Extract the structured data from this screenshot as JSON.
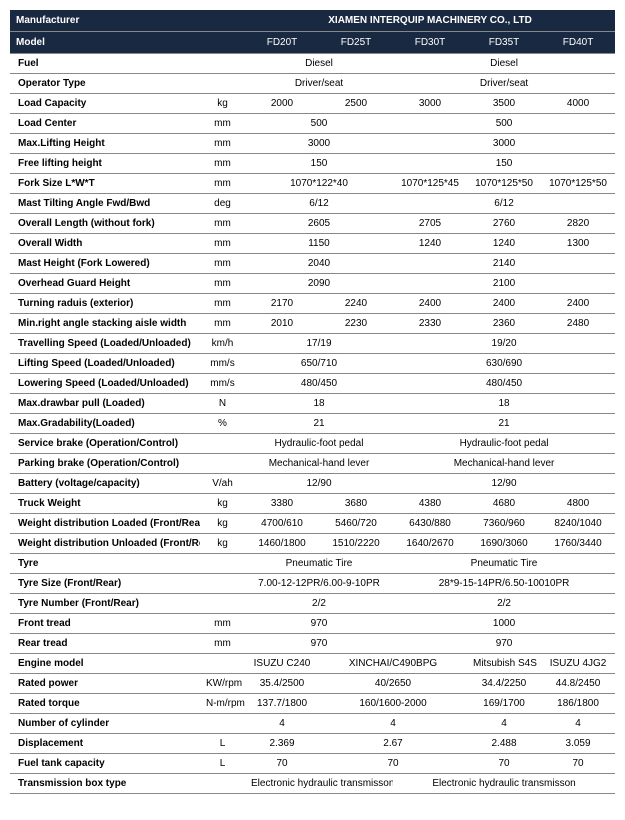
{
  "header": {
    "manufacturer_label": "Manufacturer",
    "manufacturer_value": "XIAMEN INTERQUIP MACHINERY CO., LTD",
    "model_label": "Model",
    "models": [
      "FD20T",
      "FD25T",
      "FD30T",
      "FD35T",
      "FD40T"
    ]
  },
  "rows": [
    {
      "label": "Fuel",
      "unit": "",
      "cells": [
        {
          "span": 2,
          "v": "Diesel"
        },
        {
          "span": 3,
          "v": "Diesel"
        }
      ]
    },
    {
      "label": "Operator Type",
      "unit": "",
      "cells": [
        {
          "span": 2,
          "v": "Driver/seat"
        },
        {
          "span": 3,
          "v": "Driver/seat"
        }
      ]
    },
    {
      "label": "Load Capacity",
      "unit": "kg",
      "cells": [
        {
          "span": 1,
          "v": "2000"
        },
        {
          "span": 1,
          "v": "2500"
        },
        {
          "span": 1,
          "v": "3000"
        },
        {
          "span": 1,
          "v": "3500"
        },
        {
          "span": 1,
          "v": "4000"
        }
      ]
    },
    {
      "label": "Load Center",
      "unit": "mm",
      "cells": [
        {
          "span": 2,
          "v": "500"
        },
        {
          "span": 3,
          "v": "500"
        }
      ]
    },
    {
      "label": "Max.Lifting Height",
      "unit": "mm",
      "cells": [
        {
          "span": 2,
          "v": "3000"
        },
        {
          "span": 3,
          "v": "3000"
        }
      ]
    },
    {
      "label": "Free lifting height",
      "unit": "mm",
      "cells": [
        {
          "span": 2,
          "v": "150"
        },
        {
          "span": 3,
          "v": "150"
        }
      ]
    },
    {
      "label": "Fork Size  L*W*T",
      "unit": "mm",
      "cells": [
        {
          "span": 2,
          "v": "1070*122*40"
        },
        {
          "span": 1,
          "v": "1070*125*45"
        },
        {
          "span": 1,
          "v": "1070*125*50"
        },
        {
          "span": 1,
          "v": "1070*125*50"
        }
      ]
    },
    {
      "label": "Mast Tilting Angle  Fwd/Bwd",
      "unit": "deg",
      "cells": [
        {
          "span": 2,
          "v": "6/12"
        },
        {
          "span": 3,
          "v": "6/12"
        }
      ]
    },
    {
      "label": "Overall Length (without fork)",
      "unit": "mm",
      "cells": [
        {
          "span": 2,
          "v": "2605"
        },
        {
          "span": 1,
          "v": "2705"
        },
        {
          "span": 1,
          "v": "2760"
        },
        {
          "span": 1,
          "v": "2820"
        }
      ]
    },
    {
      "label": "Overall Width",
      "unit": "mm",
      "cells": [
        {
          "span": 2,
          "v": "1150"
        },
        {
          "span": 1,
          "v": "1240"
        },
        {
          "span": 1,
          "v": "1240"
        },
        {
          "span": 1,
          "v": "1300"
        }
      ]
    },
    {
      "label": "Mast Height (Fork Lowered)",
      "unit": "mm",
      "cells": [
        {
          "span": 2,
          "v": "2040"
        },
        {
          "span": 3,
          "v": "2140"
        }
      ]
    },
    {
      "label": "Overhead Guard Height",
      "unit": "mm",
      "cells": [
        {
          "span": 2,
          "v": "2090"
        },
        {
          "span": 3,
          "v": "2100"
        }
      ]
    },
    {
      "label": "Turning raduis (exterior)",
      "unit": "mm",
      "cells": [
        {
          "span": 1,
          "v": "2170"
        },
        {
          "span": 1,
          "v": "2240"
        },
        {
          "span": 1,
          "v": "2400"
        },
        {
          "span": 1,
          "v": "2400"
        },
        {
          "span": 1,
          "v": "2400"
        }
      ]
    },
    {
      "label": "Min.right angle stacking aisle width",
      "unit": "mm",
      "cells": [
        {
          "span": 1,
          "v": "2010"
        },
        {
          "span": 1,
          "v": "2230"
        },
        {
          "span": 1,
          "v": "2330"
        },
        {
          "span": 1,
          "v": "2360"
        },
        {
          "span": 1,
          "v": "2480"
        }
      ]
    },
    {
      "label": "Travelling Speed (Loaded/Unloaded)",
      "unit": "km/h",
      "cells": [
        {
          "span": 2,
          "v": "17/19"
        },
        {
          "span": 3,
          "v": "19/20"
        }
      ]
    },
    {
      "label": "Lifting Speed (Loaded/Unloaded)",
      "unit": "mm/s",
      "cells": [
        {
          "span": 2,
          "v": "650/710"
        },
        {
          "span": 3,
          "v": "630/690"
        }
      ]
    },
    {
      "label": "Lowering Speed (Loaded/Unloaded)",
      "unit": "mm/s",
      "cells": [
        {
          "span": 2,
          "v": "480/450"
        },
        {
          "span": 3,
          "v": "480/450"
        }
      ]
    },
    {
      "label": "Max.drawbar pull (Loaded)",
      "unit": "N",
      "cells": [
        {
          "span": 2,
          "v": "18"
        },
        {
          "span": 3,
          "v": "18"
        }
      ]
    },
    {
      "label": "Max.Gradability(Loaded)",
      "unit": "%",
      "cells": [
        {
          "span": 2,
          "v": "21"
        },
        {
          "span": 3,
          "v": "21"
        }
      ]
    },
    {
      "label": "Service brake (Operation/Control)",
      "unit": "",
      "cells": [
        {
          "span": 2,
          "v": "Hydraulic-foot pedal"
        },
        {
          "span": 3,
          "v": "Hydraulic-foot pedal"
        }
      ]
    },
    {
      "label": "Parking brake (Operation/Control)",
      "unit": "",
      "cells": [
        {
          "span": 2,
          "v": "Mechanical-hand lever"
        },
        {
          "span": 3,
          "v": "Mechanical-hand lever"
        }
      ]
    },
    {
      "label": "Battery (voltage/capacity)",
      "unit": "V/ah",
      "cells": [
        {
          "span": 2,
          "v": "12/90"
        },
        {
          "span": 3,
          "v": "12/90"
        }
      ]
    },
    {
      "label": "Truck Weight",
      "unit": "kg",
      "cells": [
        {
          "span": 1,
          "v": "3380"
        },
        {
          "span": 1,
          "v": "3680"
        },
        {
          "span": 1,
          "v": "4380"
        },
        {
          "span": 1,
          "v": "4680"
        },
        {
          "span": 1,
          "v": "4800"
        }
      ]
    },
    {
      "label": "Weight distribution Loaded (Front/Rear)",
      "unit": "kg",
      "cells": [
        {
          "span": 1,
          "v": "4700/610"
        },
        {
          "span": 1,
          "v": "5460/720"
        },
        {
          "span": 1,
          "v": "6430/880"
        },
        {
          "span": 1,
          "v": "7360/960"
        },
        {
          "span": 1,
          "v": "8240/1040"
        }
      ]
    },
    {
      "label": "Weight distribution Unloaded (Front/Rear)",
      "unit": "kg",
      "cells": [
        {
          "span": 1,
          "v": "1460/1800"
        },
        {
          "span": 1,
          "v": "1510/2220"
        },
        {
          "span": 1,
          "v": "1640/2670"
        },
        {
          "span": 1,
          "v": "1690/3060"
        },
        {
          "span": 1,
          "v": "1760/3440"
        }
      ]
    },
    {
      "label": "Tyre",
      "unit": "",
      "cells": [
        {
          "span": 2,
          "v": "Pneumatic Tire"
        },
        {
          "span": 3,
          "v": "Pneumatic Tire"
        }
      ]
    },
    {
      "label": "Tyre Size  (Front/Rear)",
      "unit": "",
      "cells": [
        {
          "span": 2,
          "v": "7.00-12-12PR/6.00-9-10PR"
        },
        {
          "span": 3,
          "v": "28*9-15-14PR/6.50-10010PR"
        }
      ]
    },
    {
      "label": "Tyre Number  (Front/Rear)",
      "unit": "",
      "cells": [
        {
          "span": 2,
          "v": "2/2"
        },
        {
          "span": 3,
          "v": "2/2"
        }
      ]
    },
    {
      "label": "Front tread",
      "unit": "mm",
      "cells": [
        {
          "span": 2,
          "v": "970"
        },
        {
          "span": 3,
          "v": "1000"
        }
      ]
    },
    {
      "label": "Rear tread",
      "unit": "mm",
      "cells": [
        {
          "span": 2,
          "v": "970"
        },
        {
          "span": 3,
          "v": "970"
        }
      ]
    },
    {
      "label": "Engine model",
      "unit": "",
      "cells": [
        {
          "span": 1,
          "v": "ISUZU C240"
        },
        {
          "span": 2,
          "v": "XINCHAI/C490BPG"
        },
        {
          "span": 1,
          "v": "Mitsubish S4S"
        },
        {
          "span": 1,
          "v": "ISUZU 4JG2"
        }
      ]
    },
    {
      "label": "Rated power",
      "unit": "KW/rpm",
      "cells": [
        {
          "span": 1,
          "v": "35.4/2500"
        },
        {
          "span": 2,
          "v": "40/2650"
        },
        {
          "span": 1,
          "v": "34.4/2250"
        },
        {
          "span": 1,
          "v": "44.8/2450"
        }
      ]
    },
    {
      "label": "Rated torque",
      "unit": "N-m/rpm",
      "cells": [
        {
          "span": 1,
          "v": "137.7/1800"
        },
        {
          "span": 2,
          "v": "160/1600-2000"
        },
        {
          "span": 1,
          "v": "169/1700"
        },
        {
          "span": 1,
          "v": "186/1800"
        }
      ]
    },
    {
      "label": "Number of cylinder",
      "unit": "",
      "cells": [
        {
          "span": 1,
          "v": "4"
        },
        {
          "span": 2,
          "v": "4"
        },
        {
          "span": 1,
          "v": "4"
        },
        {
          "span": 1,
          "v": "4"
        }
      ]
    },
    {
      "label": "Displacement",
      "unit": "L",
      "cells": [
        {
          "span": 1,
          "v": "2.369"
        },
        {
          "span": 2,
          "v": "2.67"
        },
        {
          "span": 1,
          "v": "2.488"
        },
        {
          "span": 1,
          "v": "3.059"
        }
      ]
    },
    {
      "label": "Fuel tank capacity",
      "unit": "L",
      "cells": [
        {
          "span": 1,
          "v": "70"
        },
        {
          "span": 2,
          "v": "70"
        },
        {
          "span": 1,
          "v": "70"
        },
        {
          "span": 1,
          "v": "70"
        }
      ]
    },
    {
      "label": "Transmission box type",
      "unit": "",
      "cells": [
        {
          "span": 2,
          "v": "Electronic hydraulic transmisson"
        },
        {
          "span": 3,
          "v": "Electronic hydraulic transmisson"
        }
      ]
    }
  ]
}
